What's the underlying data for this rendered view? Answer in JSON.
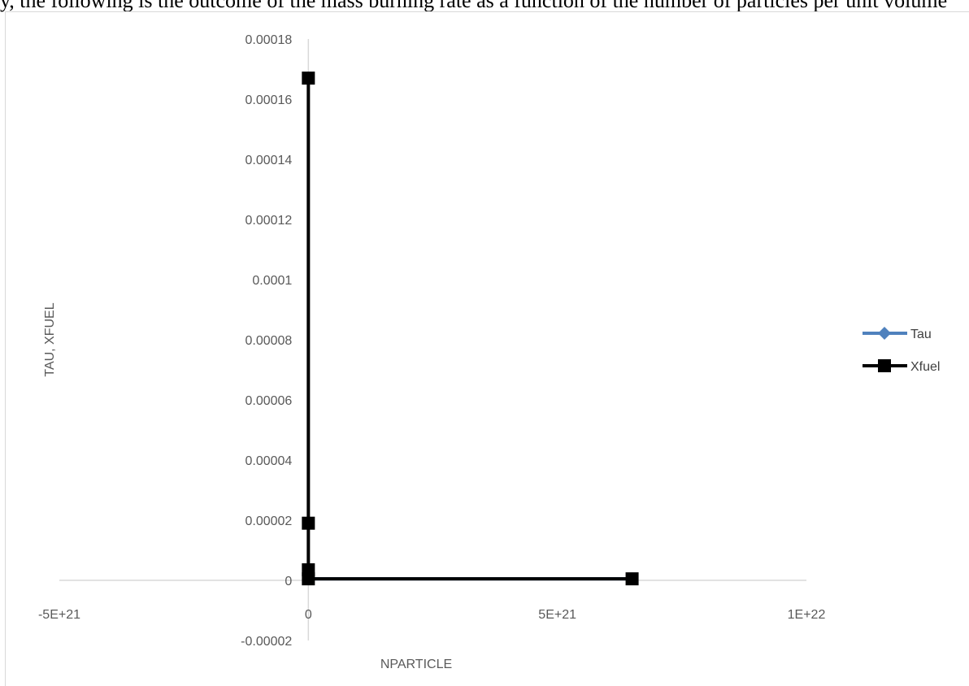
{
  "header_text": "y, the following is the outcome of the mass burning rate as a function of the number of particles per unit volume",
  "chart_data": {
    "type": "scatter",
    "title": "",
    "xlabel": "NPARTICLE",
    "ylabel": "TAU, XFUEL",
    "xlim": [
      -5e+21,
      1e+22
    ],
    "ylim": [
      -2e-05,
      0.00018
    ],
    "x_ticks": [
      "-5E+21",
      "0",
      "5E+21",
      "1E+22"
    ],
    "y_ticks": [
      "-0.00002",
      "0",
      "0.00002",
      "0.00004",
      "0.00006",
      "0.00008",
      "0.0001",
      "0.00012",
      "0.00014",
      "0.00016",
      "0.00018"
    ],
    "grid": false,
    "legend_position": "right",
    "series": [
      {
        "name": "Tau",
        "color": "#4f81bd",
        "marker": "diamond",
        "x": [
          0,
          0,
          0,
          6.5e+21
        ],
        "y": [
          5e-07,
          5e-07,
          5e-07,
          5e-07
        ]
      },
      {
        "name": "Xfuel",
        "color": "#000000",
        "marker": "square",
        "x": [
          0,
          0,
          0,
          0,
          6.5e+21
        ],
        "y": [
          0.000167,
          1.9e-05,
          3.5e-06,
          5e-07,
          5e-07
        ]
      }
    ]
  }
}
